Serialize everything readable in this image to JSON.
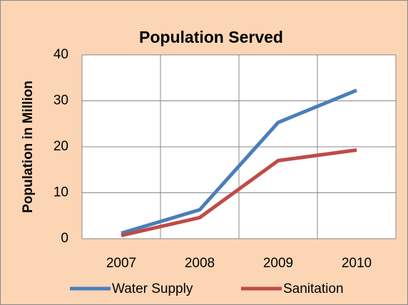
{
  "chart_data": {
    "type": "line",
    "title": "Population Served",
    "y_label": "Population in Million",
    "categories": [
      "2007",
      "2008",
      "2009",
      "2010"
    ],
    "series": [
      {
        "name": "Water Supply",
        "color": "#4a7ebb",
        "values": [
          1.2,
          6.3,
          25.3,
          32.3
        ]
      },
      {
        "name": "Sanitation",
        "color": "#be4b48",
        "values": [
          0.7,
          4.6,
          17,
          19.3
        ]
      }
    ],
    "ylim": [
      0,
      40
    ],
    "yticks": [
      0,
      10,
      20,
      30,
      40
    ],
    "grid": true,
    "legend": "bottom"
  }
}
